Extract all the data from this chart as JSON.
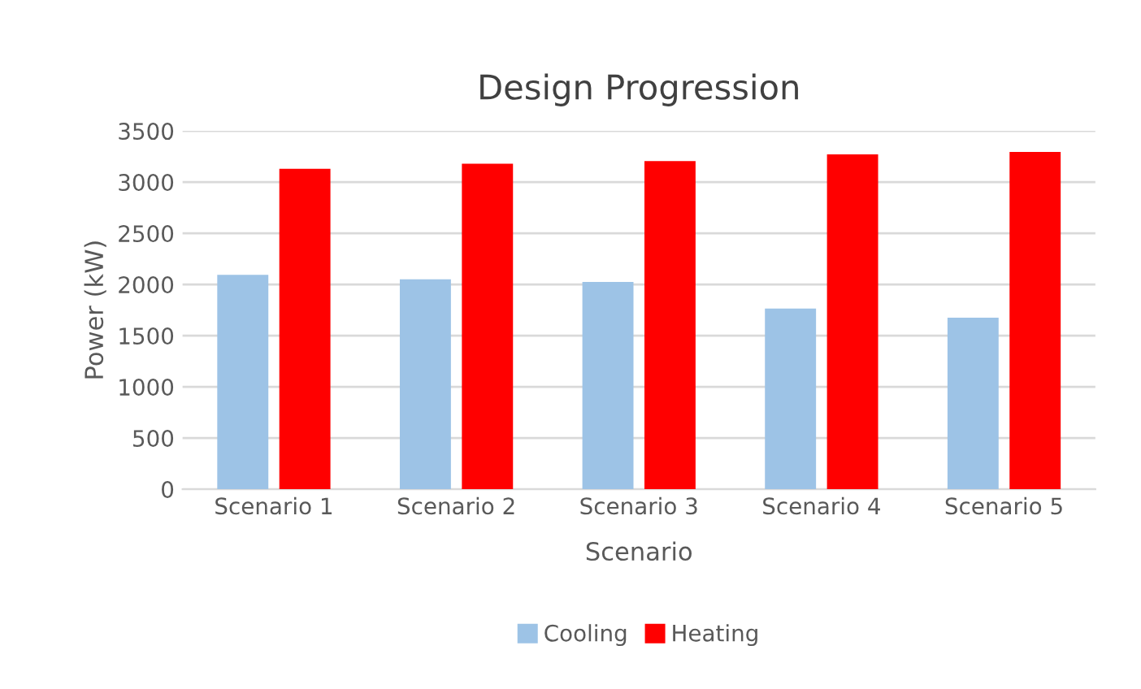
{
  "chart_data": {
    "type": "bar",
    "title": "Design Progression",
    "xlabel": "Scenario",
    "ylabel": "Power (kW)",
    "categories": [
      "Scenario 1",
      "Scenario 2",
      "Scenario 3",
      "Scenario 4",
      "Scenario 5"
    ],
    "series": [
      {
        "name": "Cooling",
        "color": "#9dc3e6",
        "values": [
          2095,
          2050,
          2025,
          1765,
          1675
        ]
      },
      {
        "name": "Heating",
        "color": "#ff0000",
        "values": [
          3130,
          3180,
          3205,
          3270,
          3295
        ]
      }
    ],
    "ylim": [
      0,
      3500
    ],
    "yticks": [
      0,
      500,
      1000,
      1500,
      2000,
      2500,
      3000,
      3500
    ],
    "grid": "y",
    "legend": "bottom"
  }
}
